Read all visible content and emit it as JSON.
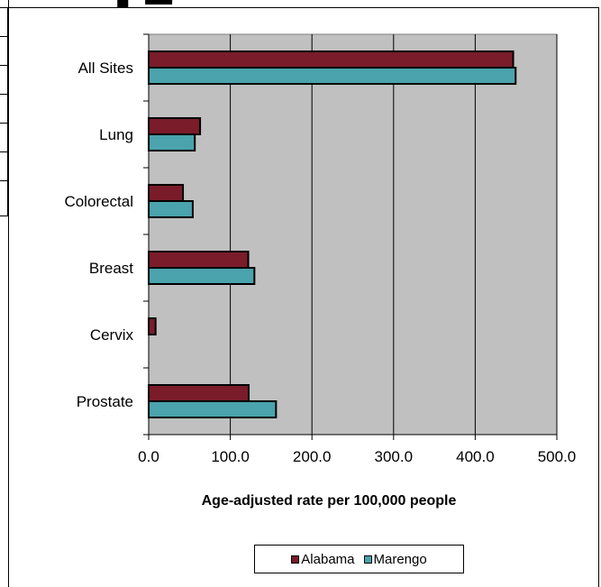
{
  "colors": {
    "alabama": "#7a1c2a",
    "marengo": "#4aa3ad",
    "plot_background": "#c0c0c0"
  },
  "chart_data": {
    "type": "bar",
    "orientation": "horizontal",
    "categories": [
      "All Sites",
      "Lung",
      "Colorectal",
      "Breast",
      "Cervix",
      "Prostate"
    ],
    "series": [
      {
        "name": "Alabama",
        "values": [
          446.5,
          63.0,
          42.0,
          122.0,
          8.5,
          122.5
        ]
      },
      {
        "name": "Marengo",
        "values": [
          449.5,
          56.5,
          54.0,
          129.5,
          0.0,
          156.0
        ]
      }
    ],
    "xlim": [
      0,
      500
    ],
    "x_ticks": [
      "0.0",
      "100.0",
      "200.0",
      "300.0",
      "400.0",
      "500.0"
    ],
    "xlabel": "Age-adjusted rate per 100,000 people",
    "ylabel": "",
    "grid": "vertical major gridlines",
    "legend_position": "bottom"
  }
}
